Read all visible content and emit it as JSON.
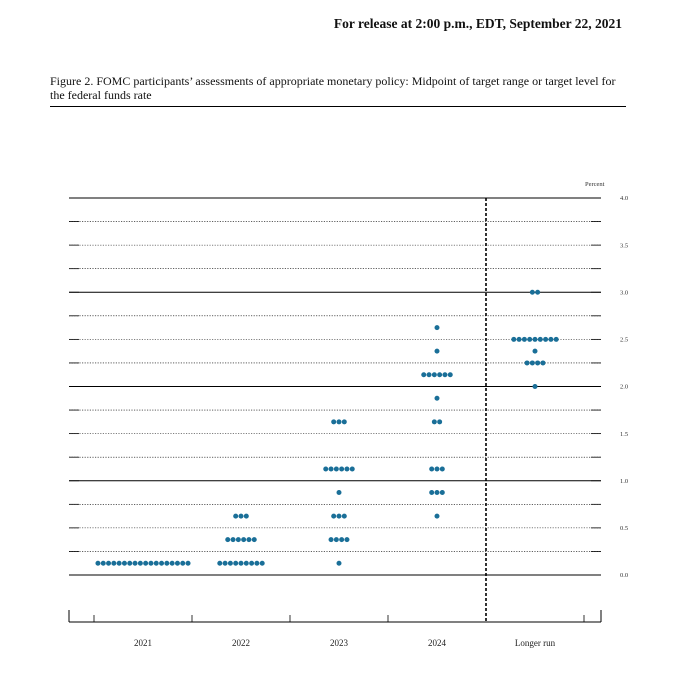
{
  "header": {
    "release": "For release at 2:00 p.m., EDT, September 22, 2021",
    "caption": "Figure 2.  FOMC participants’ assessments of appropriate monetary policy: Midpoint of target range or target level for the federal funds rate"
  },
  "chart_data": {
    "type": "scatter",
    "title": "",
    "unit_label": "Percent",
    "ylim": [
      0,
      4.0
    ],
    "y_ticks": [
      "4.0",
      "3.5",
      "3.0",
      "2.5",
      "2.0",
      "1.5",
      "1.0",
      "0.5",
      "0.0"
    ],
    "grid_step": 0.25,
    "categories": [
      "2021",
      "2022",
      "2023",
      "2024",
      "Longer run"
    ],
    "dot_color": "#1a6f98",
    "series": [
      {
        "category": "2021",
        "points": [
          {
            "y": 0.125,
            "count": 18
          }
        ]
      },
      {
        "category": "2022",
        "points": [
          {
            "y": 0.625,
            "count": 3
          },
          {
            "y": 0.375,
            "count": 6
          },
          {
            "y": 0.125,
            "count": 9
          }
        ]
      },
      {
        "category": "2023",
        "points": [
          {
            "y": 1.625,
            "count": 3
          },
          {
            "y": 1.125,
            "count": 6
          },
          {
            "y": 0.875,
            "count": 1
          },
          {
            "y": 0.625,
            "count": 3
          },
          {
            "y": 0.375,
            "count": 4
          },
          {
            "y": 0.125,
            "count": 1
          }
        ]
      },
      {
        "category": "2024",
        "points": [
          {
            "y": 2.625,
            "count": 1
          },
          {
            "y": 2.375,
            "count": 1
          },
          {
            "y": 2.125,
            "count": 6
          },
          {
            "y": 1.875,
            "count": 1
          },
          {
            "y": 1.625,
            "count": 2
          },
          {
            "y": 1.125,
            "count": 3
          },
          {
            "y": 0.875,
            "count": 3
          },
          {
            "y": 0.625,
            "count": 1
          }
        ]
      },
      {
        "category": "Longer run",
        "points": [
          {
            "y": 3.0,
            "count": 2
          },
          {
            "y": 2.5,
            "count": 9
          },
          {
            "y": 2.375,
            "count": 1
          },
          {
            "y": 2.25,
            "count": 4
          },
          {
            "y": 2.0,
            "count": 1
          }
        ]
      }
    ]
  }
}
